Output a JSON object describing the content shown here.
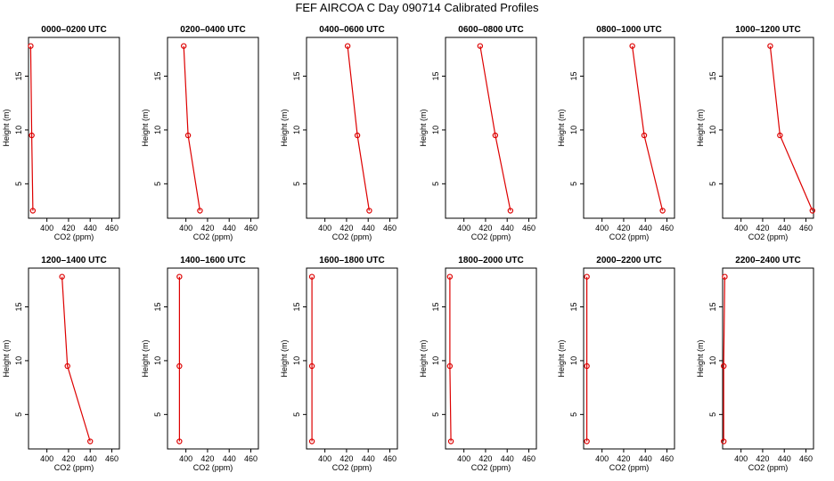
{
  "figure": {
    "title": "FEF AIRCOA C  Day 090714  Calibrated Profiles"
  },
  "colors": {
    "series": "#dd0000",
    "axis": "#000000"
  },
  "chart_data": [
    {
      "type": "line",
      "title": "0000–0200 UTC",
      "xlabel": "CO2 (ppm)",
      "ylabel": "Height (m)",
      "xlim": [
        383,
        467
      ],
      "ylim": [
        1.8,
        18.6
      ],
      "xticks": [
        400,
        420,
        440,
        460
      ],
      "yticks": [
        5,
        10,
        15
      ],
      "points": [
        {
          "x": 385.0,
          "y": 17.8
        },
        {
          "x": 386.0,
          "y": 9.5
        },
        {
          "x": 387.0,
          "y": 2.5
        }
      ]
    },
    {
      "type": "line",
      "title": "0200–0400 UTC",
      "xlabel": "CO2 (ppm)",
      "ylabel": "Height (m)",
      "xlim": [
        383,
        467
      ],
      "ylim": [
        1.8,
        18.6
      ],
      "xticks": [
        400,
        420,
        440,
        460
      ],
      "yticks": [
        5,
        10,
        15
      ],
      "points": [
        {
          "x": 398.0,
          "y": 17.8
        },
        {
          "x": 402.0,
          "y": 9.5
        },
        {
          "x": 413.0,
          "y": 2.5
        }
      ]
    },
    {
      "type": "line",
      "title": "0400–0600 UTC",
      "xlabel": "CO2 (ppm)",
      "ylabel": "Height (m)",
      "xlim": [
        383,
        467
      ],
      "ylim": [
        1.8,
        18.6
      ],
      "xticks": [
        400,
        420,
        440,
        460
      ],
      "yticks": [
        5,
        10,
        15
      ],
      "points": [
        {
          "x": 421.0,
          "y": 17.8
        },
        {
          "x": 430.0,
          "y": 9.5
        },
        {
          "x": 441.0,
          "y": 2.5
        }
      ]
    },
    {
      "type": "line",
      "title": "0600–0800 UTC",
      "xlabel": "CO2 (ppm)",
      "ylabel": "Height (m)",
      "xlim": [
        383,
        467
      ],
      "ylim": [
        1.8,
        18.6
      ],
      "xticks": [
        400,
        420,
        440,
        460
      ],
      "yticks": [
        5,
        10,
        15
      ],
      "points": [
        {
          "x": 415.0,
          "y": 17.8
        },
        {
          "x": 429.0,
          "y": 9.5
        },
        {
          "x": 443.0,
          "y": 2.5
        }
      ]
    },
    {
      "type": "line",
      "title": "0800–1000 UTC",
      "xlabel": "CO2 (ppm)",
      "ylabel": "Height (m)",
      "xlim": [
        383,
        467
      ],
      "ylim": [
        1.8,
        18.6
      ],
      "xticks": [
        400,
        420,
        440,
        460
      ],
      "yticks": [
        5,
        10,
        15
      ],
      "points": [
        {
          "x": 428.0,
          "y": 17.8
        },
        {
          "x": 439.0,
          "y": 9.5
        },
        {
          "x": 456.0,
          "y": 2.5
        }
      ]
    },
    {
      "type": "line",
      "title": "1000–1200 UTC",
      "xlabel": "CO2 (ppm)",
      "ylabel": "Height (m)",
      "xlim": [
        383,
        467
      ],
      "ylim": [
        1.8,
        18.6
      ],
      "xticks": [
        400,
        420,
        440,
        460
      ],
      "yticks": [
        5,
        10,
        15
      ],
      "points": [
        {
          "x": 427.0,
          "y": 17.8
        },
        {
          "x": 436.0,
          "y": 9.5
        },
        {
          "x": 466.0,
          "y": 2.5
        }
      ]
    },
    {
      "type": "line",
      "title": "1200–1400 UTC",
      "xlabel": "CO2 (ppm)",
      "ylabel": "Height (m)",
      "xlim": [
        383,
        467
      ],
      "ylim": [
        1.8,
        18.6
      ],
      "xticks": [
        400,
        420,
        440,
        460
      ],
      "yticks": [
        5,
        10,
        15
      ],
      "points": [
        {
          "x": 414.0,
          "y": 17.8
        },
        {
          "x": 419.0,
          "y": 9.5
        },
        {
          "x": 440.0,
          "y": 2.5
        }
      ]
    },
    {
      "type": "line",
      "title": "1400–1600 UTC",
      "xlabel": "CO2 (ppm)",
      "ylabel": "Height (m)",
      "xlim": [
        383,
        467
      ],
      "ylim": [
        1.8,
        18.6
      ],
      "xticks": [
        400,
        420,
        440,
        460
      ],
      "yticks": [
        5,
        10,
        15
      ],
      "points": [
        {
          "x": 394.0,
          "y": 17.8
        },
        {
          "x": 394.0,
          "y": 9.5
        },
        {
          "x": 394.0,
          "y": 2.5
        }
      ]
    },
    {
      "type": "line",
      "title": "1600–1800 UTC",
      "xlabel": "CO2 (ppm)",
      "ylabel": "Height (m)",
      "xlim": [
        383,
        467
      ],
      "ylim": [
        1.8,
        18.6
      ],
      "xticks": [
        400,
        420,
        440,
        460
      ],
      "yticks": [
        5,
        10,
        15
      ],
      "points": [
        {
          "x": 388.0,
          "y": 17.8
        },
        {
          "x": 388.0,
          "y": 9.5
        },
        {
          "x": 388.0,
          "y": 2.5
        }
      ]
    },
    {
      "type": "line",
      "title": "1800–2000 UTC",
      "xlabel": "CO2 (ppm)",
      "ylabel": "Height (m)",
      "xlim": [
        383,
        467
      ],
      "ylim": [
        1.8,
        18.6
      ],
      "xticks": [
        400,
        420,
        440,
        460
      ],
      "yticks": [
        5,
        10,
        15
      ],
      "points": [
        {
          "x": 387.0,
          "y": 17.8
        },
        {
          "x": 387.0,
          "y": 9.5
        },
        {
          "x": 388.0,
          "y": 2.5
        }
      ]
    },
    {
      "type": "line",
      "title": "2000–2200 UTC",
      "xlabel": "CO2 (ppm)",
      "ylabel": "Height (m)",
      "xlim": [
        383,
        467
      ],
      "ylim": [
        1.8,
        18.6
      ],
      "xticks": [
        400,
        420,
        440,
        460
      ],
      "yticks": [
        5,
        10,
        15
      ],
      "points": [
        {
          "x": 386.0,
          "y": 17.8
        },
        {
          "x": 386.0,
          "y": 9.5
        },
        {
          "x": 386.0,
          "y": 2.5
        }
      ]
    },
    {
      "type": "line",
      "title": "2200–2400 UTC",
      "xlabel": "CO2 (ppm)",
      "ylabel": "Height (m)",
      "xlim": [
        383,
        467
      ],
      "ylim": [
        1.8,
        18.6
      ],
      "xticks": [
        400,
        420,
        440,
        460
      ],
      "yticks": [
        5,
        10,
        15
      ],
      "points": [
        {
          "x": 385.0,
          "y": 17.8
        },
        {
          "x": 384.0,
          "y": 9.5
        },
        {
          "x": 384.0,
          "y": 2.5
        }
      ]
    }
  ]
}
